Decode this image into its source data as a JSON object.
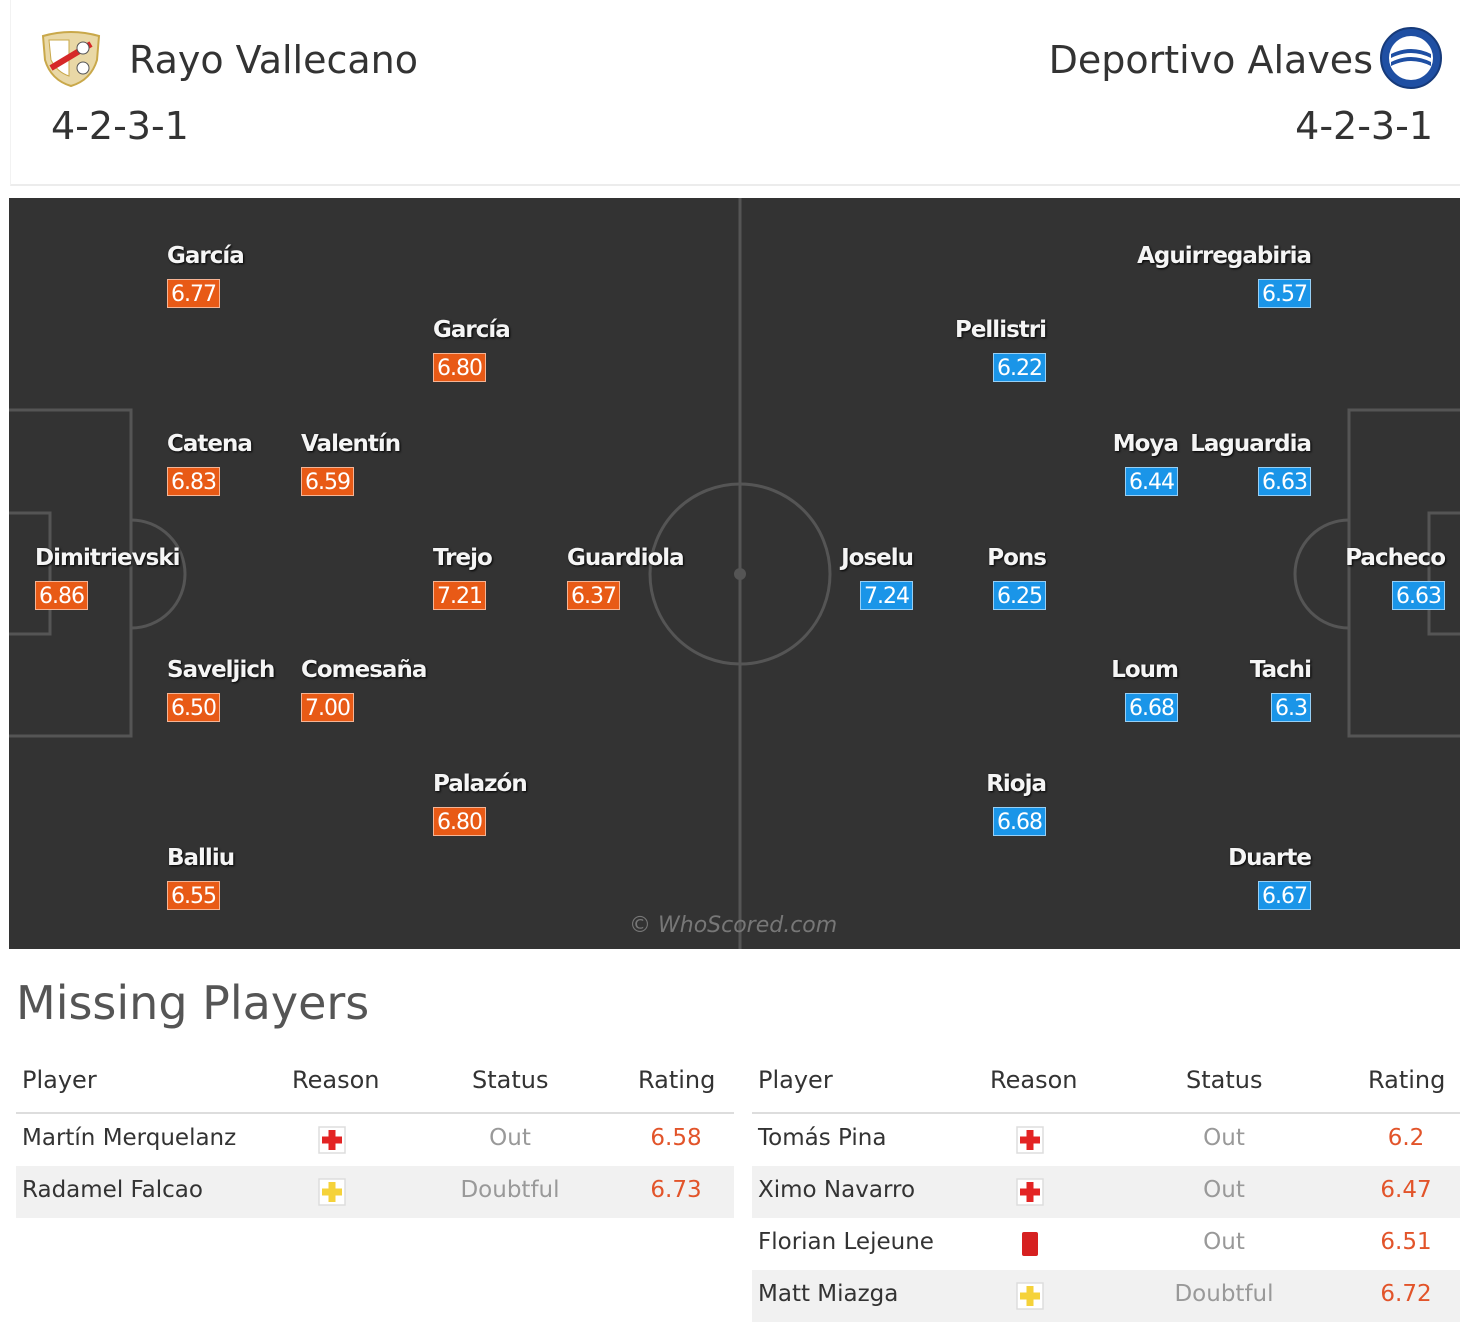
{
  "header": {
    "home": {
      "name": "Rayo Vallecano",
      "formation": "4-2-3-1",
      "crest": "rayo-vallecano-crest"
    },
    "away": {
      "name": "Deportivo Alaves",
      "formation": "4-2-3-1",
      "crest": "deportivo-alaves-crest"
    }
  },
  "pitch": {
    "watermark": "© WhoScored.com",
    "home_color": "#e85a16",
    "away_color": "#1a95e8",
    "home_players": [
      {
        "name": "García",
        "rating": "6.77"
      },
      {
        "name": "García",
        "rating": "6.80"
      },
      {
        "name": "Catena",
        "rating": "6.83"
      },
      {
        "name": "Valentín",
        "rating": "6.59"
      },
      {
        "name": "Dimitrievski",
        "rating": "6.86"
      },
      {
        "name": "Trejo",
        "rating": "7.21"
      },
      {
        "name": "Guardiola",
        "rating": "6.37"
      },
      {
        "name": "Saveljich",
        "rating": "6.50"
      },
      {
        "name": "Comesaña",
        "rating": "7.00"
      },
      {
        "name": "Palazón",
        "rating": "6.80"
      },
      {
        "name": "Balliu",
        "rating": "6.55"
      }
    ],
    "away_players": [
      {
        "name": "Aguirregabiria",
        "rating": "6.57"
      },
      {
        "name": "Pellistri",
        "rating": "6.22"
      },
      {
        "name": "Moya",
        "rating": "6.44"
      },
      {
        "name": "Laguardia",
        "rating": "6.63"
      },
      {
        "name": "Joselu",
        "rating": "7.24"
      },
      {
        "name": "Pons",
        "rating": "6.25"
      },
      {
        "name": "Pacheco",
        "rating": "6.63"
      },
      {
        "name": "Loum",
        "rating": "6.68"
      },
      {
        "name": "Tachi",
        "rating": "6.3"
      },
      {
        "name": "Rioja",
        "rating": "6.68"
      },
      {
        "name": "Duarte",
        "rating": "6.67"
      }
    ]
  },
  "missing": {
    "title": "Missing Players",
    "columns": [
      "Player",
      "Reason",
      "Status",
      "Rating"
    ],
    "home": [
      {
        "player": "Martín Merquelanz",
        "reason": "injury-icon",
        "status": "Out",
        "rating": "6.58"
      },
      {
        "player": "Radamel Falcao",
        "reason": "doubtful-icon",
        "status": "Doubtful",
        "rating": "6.73"
      }
    ],
    "away": [
      {
        "player": "Tomás Pina",
        "reason": "injury-icon",
        "status": "Out",
        "rating": "6.2"
      },
      {
        "player": "Ximo Navarro",
        "reason": "injury-icon",
        "status": "Out",
        "rating": "6.47"
      },
      {
        "player": "Florian Lejeune",
        "reason": "red-card-icon",
        "status": "Out",
        "rating": "6.51"
      },
      {
        "player": "Matt Miazga",
        "reason": "doubtful-icon",
        "status": "Doubtful",
        "rating": "6.72"
      }
    ]
  }
}
